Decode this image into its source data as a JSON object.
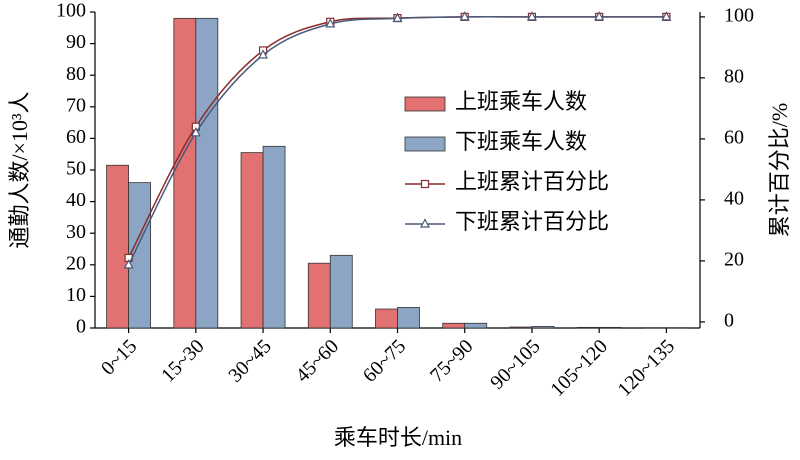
{
  "chart_data": {
    "type": "bar",
    "xlabel": "乘车时长/min",
    "ylabel": "通勤人数/×10³人",
    "y2label": "累计百分比/%",
    "categories": [
      "0~15",
      "15~30",
      "30~45",
      "45~60",
      "60~75",
      "75~90",
      "90~105",
      "105~120",
      "120~135"
    ],
    "series": [
      {
        "name": "上班乘车人数",
        "type": "bar",
        "color": "#e27172",
        "values": [
          51.5,
          98,
          55.5,
          20.5,
          6,
          1.5,
          0.3,
          0.2,
          0.1
        ]
      },
      {
        "name": "下班乘车人数",
        "type": "bar",
        "color": "#8da5c4",
        "values": [
          46,
          98,
          57.5,
          23,
          6.5,
          1.5,
          0.5,
          0.2,
          0.1
        ]
      },
      {
        "name": "上班累计百分比",
        "type": "line",
        "axis": "y2",
        "marker": "square",
        "color": "#8b2a2a",
        "values": [
          21,
          64,
          89,
          98.4,
          99.6,
          100,
          100,
          100,
          100
        ]
      },
      {
        "name": "下班累计百分比",
        "type": "line",
        "axis": "y2",
        "marker": "triangle",
        "color": "#4a5878",
        "values": [
          18.7,
          62,
          87.5,
          97.7,
          99.5,
          100,
          100,
          100,
          100
        ]
      }
    ],
    "ylim": [
      0,
      100
    ],
    "yticks": [
      0,
      10,
      20,
      30,
      40,
      50,
      60,
      70,
      80,
      90,
      100
    ],
    "y2lim": [
      -2,
      101.6
    ],
    "y2ticks": [
      0,
      20,
      40,
      60,
      80,
      100
    ],
    "legend": "center"
  }
}
